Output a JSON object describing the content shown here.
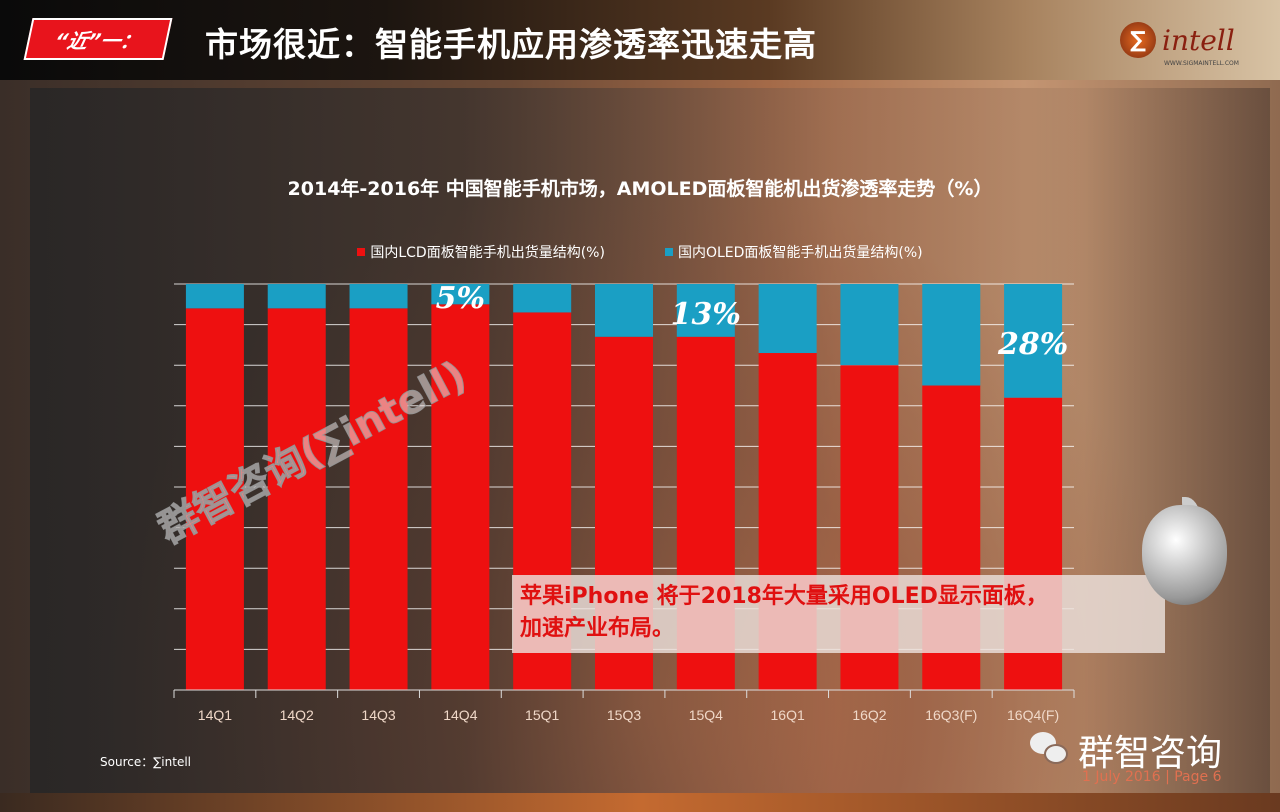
{
  "header": {
    "tag": "“近”一：",
    "title": "市场很近：智能手机应用渗透率迅速走高",
    "logo_text": "intell",
    "logo_url": "WWW.SIGMAINTELL.COM"
  },
  "chart_data": {
    "type": "stacked-bar",
    "title": "2014年-2016年 中国智能手机市场，AMOLED面板智能机出货渗透率走势（%）",
    "categories": [
      "14Q1",
      "14Q2",
      "14Q3",
      "14Q4",
      "15Q1",
      "15Q3",
      "15Q4",
      "16Q1",
      "16Q2",
      "16Q3(F)",
      "16Q4(F)"
    ],
    "series": [
      {
        "name": "国内LCD面板智能手机出货量结构(%)",
        "color": "#ee1010",
        "values": [
          94,
          94,
          94,
          95,
          93,
          87,
          87,
          83,
          80,
          75,
          72
        ]
      },
      {
        "name": "国内OLED面板智能手机出货量结构(%)",
        "color": "#1a9fc4",
        "values": [
          6,
          6,
          6,
          5,
          7,
          13,
          13,
          17,
          20,
          25,
          28
        ]
      }
    ],
    "data_labels": [
      {
        "category": "14Q4",
        "text": "5%"
      },
      {
        "category": "15Q4",
        "text": "13%"
      },
      {
        "category": "16Q4(F)",
        "text": "28%"
      }
    ],
    "ylim": [
      0,
      100
    ],
    "grid": true,
    "legend": "top"
  },
  "callout": {
    "line1": "苹果iPhone 将于2018年大量采用OLED显示面板，",
    "line2": "加速产业布局。"
  },
  "footer": {
    "source": "Source：∑intell",
    "brand": "群智咨询",
    "date_page": "1 July 2016 | Page 6"
  },
  "watermark": "群智咨询(∑intell)"
}
